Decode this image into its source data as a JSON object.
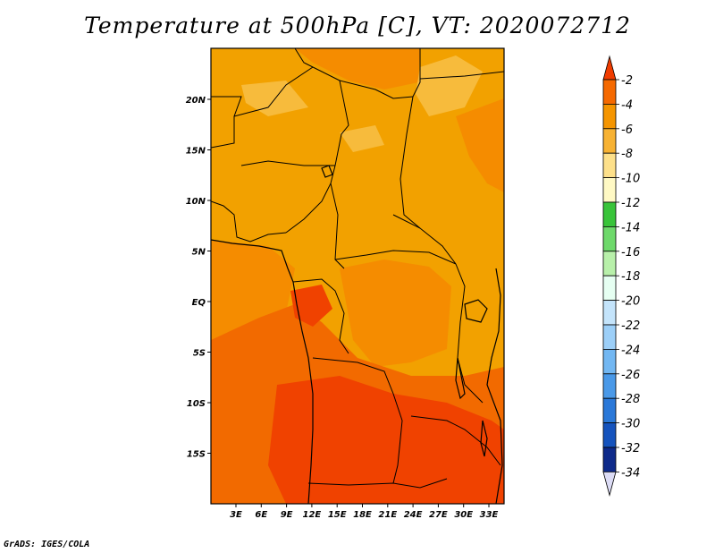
{
  "title": "Temperature at 500hPa [C], VT: 2020072712",
  "credit": "GrADS: IGES/COLA",
  "colors": {
    "frame": "#000000",
    "border": "#000000",
    "field_base": "#f2a100",
    "field_mid": "#f58c00",
    "field_warm": "#f26a00",
    "field_hot": "#f04200",
    "field_cool": "#f7bb3c"
  },
  "map": {
    "x_ticks": [
      "3E",
      "6E",
      "9E",
      "12E",
      "15E",
      "18E",
      "21E",
      "24E",
      "27E",
      "30E",
      "33E"
    ],
    "y_ticks": [
      "20N",
      "15N",
      "10N",
      "5N",
      "EQ",
      "5S",
      "10S",
      "15S"
    ]
  },
  "legend": {
    "labels": [
      "-2",
      "-4",
      "-6",
      "-8",
      "-10",
      "-12",
      "-14",
      "-16",
      "-18",
      "-20",
      "-22",
      "-24",
      "-26",
      "-28",
      "-30",
      "-32",
      "-34"
    ],
    "colors": [
      "#f03c00",
      "#f56900",
      "#f59500",
      "#f7b233",
      "#fde08a",
      "#fff9c4",
      "#39c43a",
      "#6ed96b",
      "#b8f0aa",
      "#e6fff2",
      "#c4e4fb",
      "#9ccff8",
      "#72b7f2",
      "#4a99e8",
      "#2a78d8",
      "#1553bd",
      "#0e2a8a",
      "#0a0a5c",
      "#dcdcf5"
    ]
  }
}
